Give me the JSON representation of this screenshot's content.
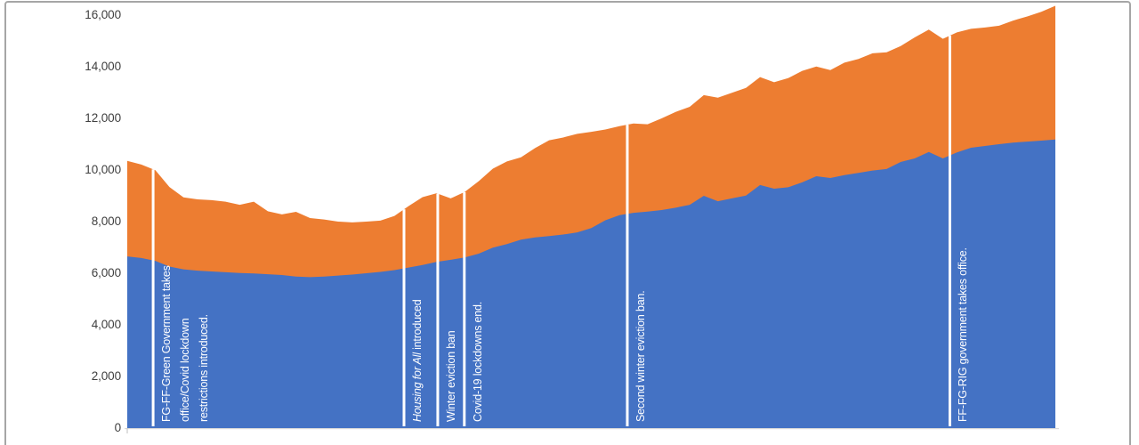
{
  "chart_data": {
    "type": "area",
    "stacked": true,
    "title": "",
    "xlabel": "",
    "ylabel": "",
    "x_axis": {
      "labels_visible": false,
      "n_points": 67
    },
    "ylim": [
      0,
      16000
    ],
    "ytick_step": 2000,
    "yticks": [
      "0",
      "2,000",
      "4,000",
      "6,000",
      "8,000",
      "10,000",
      "12,000",
      "14,000",
      "16,000"
    ],
    "grid": false,
    "legend": "none",
    "series": [
      {
        "name": "bottom-blue-area",
        "color": "#4472C4",
        "values": [
          6650,
          6590,
          6480,
          6260,
          6150,
          6100,
          6070,
          6040,
          6010,
          5990,
          5960,
          5930,
          5870,
          5850,
          5870,
          5910,
          5950,
          6000,
          6050,
          6120,
          6220,
          6320,
          6440,
          6520,
          6610,
          6760,
          6990,
          7130,
          7300,
          7390,
          7440,
          7500,
          7580,
          7750,
          8050,
          8250,
          8340,
          8390,
          8450,
          8540,
          8650,
          9000,
          8790,
          8900,
          9010,
          9420,
          9275,
          9330,
          9520,
          9760,
          9690,
          9800,
          9890,
          9980,
          10040,
          10310,
          10450,
          10700,
          10450,
          10680,
          10860,
          10930,
          11000,
          11060,
          11100,
          11140,
          11180
        ]
      },
      {
        "name": "top-orange-area",
        "color": "#ED7D31",
        "values": [
          3705,
          3620,
          3510,
          3080,
          2790,
          2760,
          2760,
          2730,
          2640,
          2780,
          2440,
          2350,
          2510,
          2290,
          2210,
          2090,
          2020,
          2000,
          1990,
          2100,
          2380,
          2630,
          2660,
          2380,
          2540,
          2810,
          3060,
          3200,
          3190,
          3460,
          3710,
          3760,
          3820,
          3730,
          3520,
          3450,
          3460,
          3380,
          3550,
          3710,
          3800,
          3900,
          4010,
          4090,
          4170,
          4180,
          4125,
          4230,
          4320,
          4250,
          4180,
          4360,
          4410,
          4540,
          4520,
          4490,
          4690,
          4740,
          4630,
          4650,
          4610,
          4590,
          4590,
          4730,
          4850,
          4990,
          5180
        ]
      }
    ],
    "annotations": [
      {
        "x_index": 1.84,
        "lines": [
          [
            {
              "text": "FG-FF-Green Government takes",
              "italic": false
            }
          ],
          [
            {
              "text": "office/Covid lockdown",
              "italic": false
            }
          ],
          [
            {
              "text": "restrictions introduced.",
              "italic": false
            }
          ]
        ]
      },
      {
        "x_index": 19.68,
        "lines": [
          [
            {
              "text": "Housing for All",
              "italic": true
            },
            {
              "text": " introduced",
              "italic": false
            }
          ]
        ]
      },
      {
        "x_index": 22.08,
        "lines": [
          [
            {
              "text": "Winter eviction ban",
              "italic": false
            }
          ]
        ]
      },
      {
        "x_index": 23.97,
        "lines": [
          [
            {
              "text": "Covid-19 lockdowns end.",
              "italic": false
            }
          ]
        ]
      },
      {
        "x_index": 35.56,
        "lines": [
          [
            {
              "text": "Second winter eviction ban.",
              "italic": false
            }
          ]
        ]
      },
      {
        "x_index": 58.5,
        "lines": [
          [
            {
              "text": "FF-FG-RIG government takes office.",
              "italic": false
            }
          ]
        ]
      }
    ],
    "colors": {
      "blue_series": "#4472C4",
      "orange_series": "#ED7D31",
      "event_line": "#FFFFFF",
      "annotation_text": "#FFFFFF",
      "axis_baseline": "#D9D9D9",
      "axis_tick": "#BFBFBF",
      "tick_label_text": "#3F3F3F",
      "frame_border": "#A6A6A6",
      "background": "#FFFFFF"
    }
  }
}
